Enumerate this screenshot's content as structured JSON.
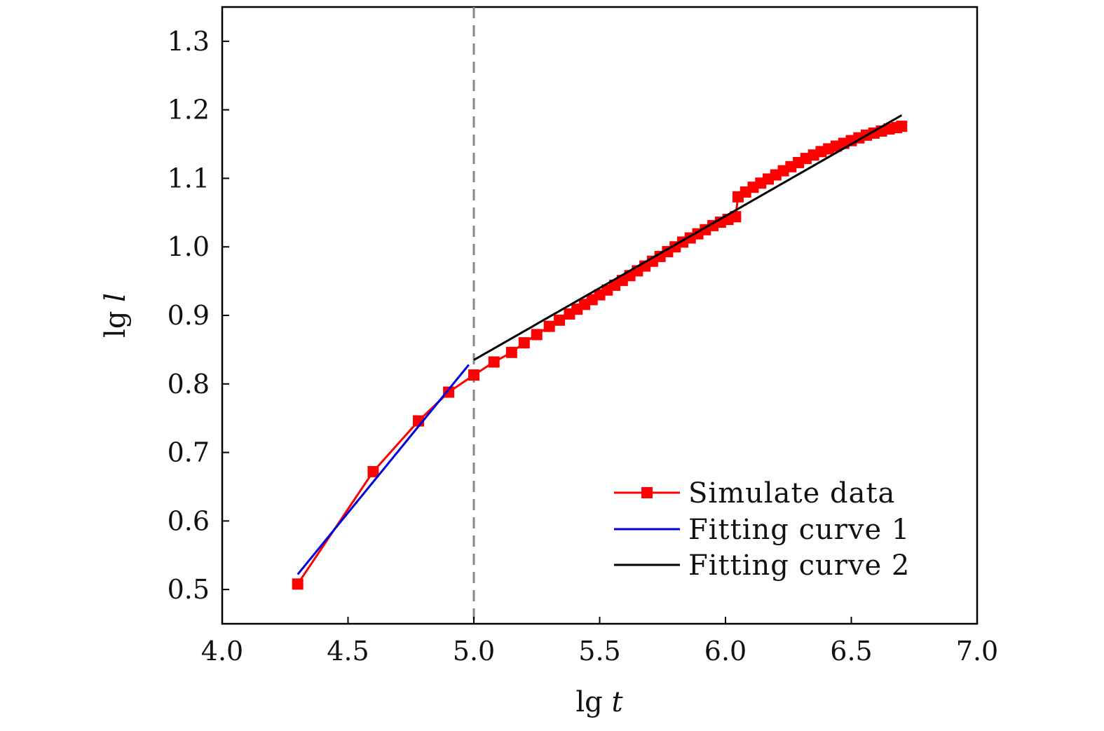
{
  "chart_data": {
    "type": "line",
    "title": "",
    "xlabel": "lg t",
    "ylabel": "lg l",
    "xlabel_parts": [
      "lg",
      "t"
    ],
    "ylabel_parts": [
      "lg",
      "l"
    ],
    "xlim": [
      4.0,
      7.0
    ],
    "ylim": [
      0.45,
      1.35
    ],
    "xticks": [
      "4.0",
      "4.5",
      "5.0",
      "5.5",
      "6.0",
      "6.5",
      "7.0"
    ],
    "yticks": [
      "0.5",
      "0.6",
      "0.7",
      "0.8",
      "0.9",
      "1.0",
      "1.1",
      "1.2",
      "1.3"
    ],
    "grid": false,
    "legend_position": "bottom-right",
    "annotations": [
      {
        "type": "vertical-dashed-line",
        "x": 5.0
      }
    ],
    "series": [
      {
        "name": "Simulate data",
        "color": "#ff0000",
        "marker": "square",
        "x": [
          4.3,
          4.6,
          4.78,
          4.9,
          5.0,
          5.08,
          5.15,
          5.2,
          5.25,
          5.3,
          5.34,
          5.38,
          5.41,
          5.44,
          5.47,
          5.5,
          5.53,
          5.56,
          5.59,
          5.62,
          5.65,
          5.68,
          5.71,
          5.74,
          5.77,
          5.8,
          5.83,
          5.86,
          5.89,
          5.92,
          5.95,
          5.98,
          6.01,
          6.04,
          6.05,
          6.08,
          6.11,
          6.14,
          6.17,
          6.2,
          6.23,
          6.26,
          6.29,
          6.32,
          6.35,
          6.38,
          6.41,
          6.44,
          6.47,
          6.5,
          6.53,
          6.56,
          6.59,
          6.62,
          6.65,
          6.68,
          6.7
        ],
        "y": [
          0.508,
          0.672,
          0.746,
          0.788,
          0.813,
          0.832,
          0.846,
          0.86,
          0.872,
          0.884,
          0.893,
          0.902,
          0.909,
          0.916,
          0.923,
          0.93,
          0.937,
          0.944,
          0.951,
          0.958,
          0.965,
          0.972,
          0.979,
          0.986,
          0.993,
          1.0,
          1.007,
          1.013,
          1.019,
          1.025,
          1.031,
          1.036,
          1.04,
          1.044,
          1.073,
          1.08,
          1.087,
          1.093,
          1.099,
          1.105,
          1.111,
          1.117,
          1.123,
          1.129,
          1.134,
          1.139,
          1.143,
          1.147,
          1.151,
          1.155,
          1.159,
          1.163,
          1.166,
          1.169,
          1.172,
          1.174,
          1.176
        ]
      },
      {
        "name": "Fitting curve 1",
        "color": "#0000dd",
        "marker": "none",
        "x": [
          4.3,
          4.98
        ],
        "y": [
          0.522,
          0.828
        ]
      },
      {
        "name": "Fitting curve 2",
        "color": "#000000",
        "marker": "none",
        "x": [
          5.0,
          6.7
        ],
        "y": [
          0.835,
          1.192
        ]
      }
    ]
  }
}
